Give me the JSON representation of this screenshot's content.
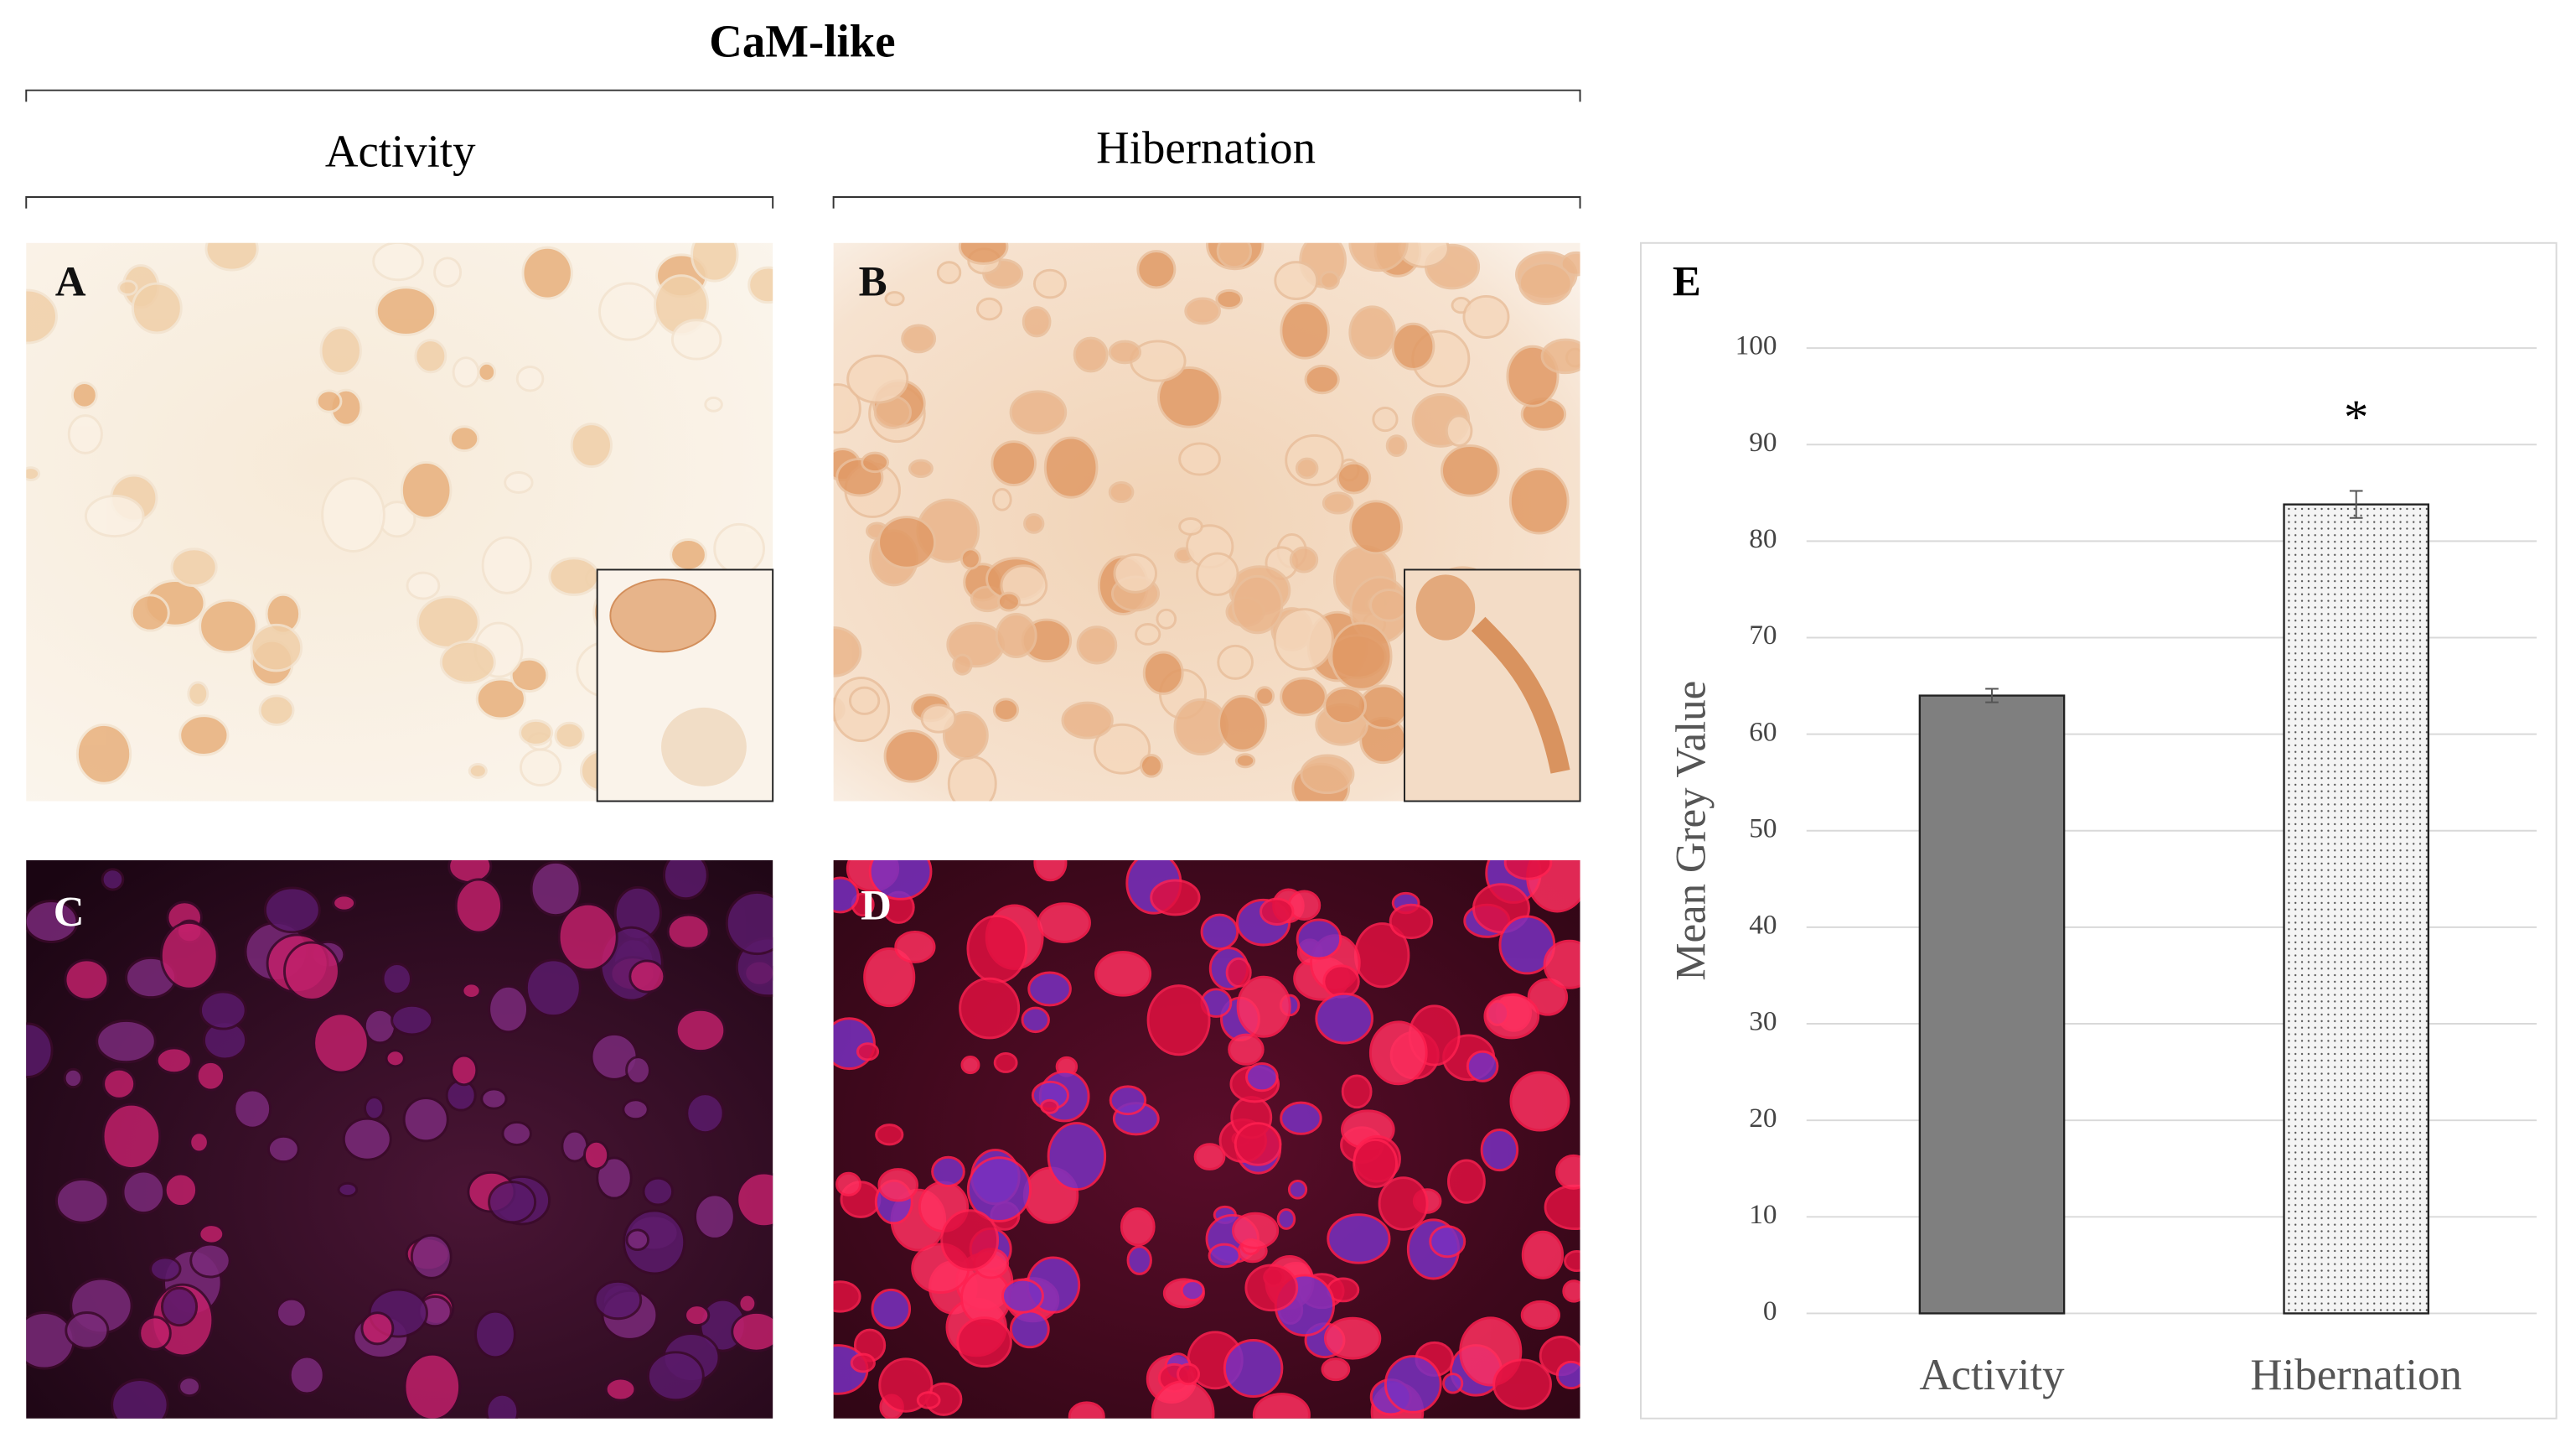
{
  "figure": {
    "title": "CaM-like",
    "groups": [
      "Activity",
      "Hibernation"
    ],
    "panels": [
      "A",
      "B",
      "C",
      "D"
    ]
  },
  "chart_data": {
    "type": "bar",
    "panel_label": "E",
    "y_label": "Mean Grey Value",
    "categories": [
      "Activity",
      "Hibernation"
    ],
    "values": [
      64,
      83.8
    ],
    "errors": [
      0.7,
      1.4
    ],
    "colors": [
      "#7f7f7f",
      "#f4f4f4"
    ],
    "fill_patterns": [
      null,
      "dots"
    ],
    "annotations": [
      null,
      "*"
    ],
    "ylim": [
      0,
      100
    ],
    "yticks": [
      0,
      10,
      20,
      30,
      40,
      50,
      60,
      70,
      80,
      90,
      100
    ],
    "grid": true
  }
}
